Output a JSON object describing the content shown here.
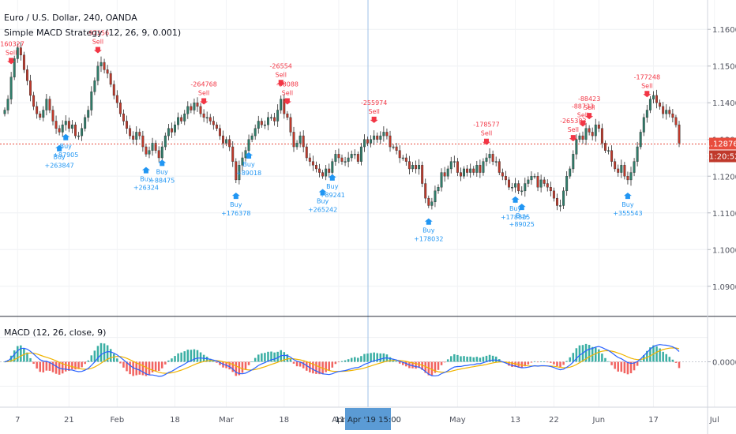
{
  "header": {
    "symbol_title": "Euro / U.S. Dollar, 240, OANDA",
    "strategy_title": "Simple MACD Strategy (12, 26, 9, 0.001)",
    "macd_title": "MACD (12, 26, close, 9)"
  },
  "badges": {
    "last_price": "1.12876",
    "countdown": "01:20:52",
    "crosshair_time": "11 Apr '19   15:00"
  },
  "colors": {
    "up_candle": "#2f7d6a",
    "down_candle": "#c0392b",
    "buy": "#2196f3",
    "sell": "#f23645",
    "macd_line": "#2962ff",
    "signal_line": "#f0b400",
    "hist_pos": "#26a69a",
    "hist_neg": "#ef5350",
    "price_line": "#e84c3d",
    "crosshair_badge": "#5b9bd5"
  },
  "chart_data": [
    {
      "type": "line",
      "chart_kind": "candlestick",
      "ylim": [
        1.082,
        1.168
      ],
      "y_ticks": [
        "1.16000",
        "1.15000",
        "1.14000",
        "1.13000",
        "1.12000",
        "1.11000",
        "1.10000",
        "1.09000"
      ],
      "y_tick_values": [
        1.16,
        1.15,
        1.14,
        1.13,
        1.12,
        1.11,
        1.1,
        1.09
      ],
      "x_ticks": [
        "7",
        "21",
        "Feb",
        "18",
        "Mar",
        "18",
        "Apr",
        "May",
        "13",
        "22",
        "Jun",
        "17",
        "Jul"
      ],
      "x_tick_positions": [
        4,
        20,
        35,
        53,
        69,
        87,
        104,
        141,
        159,
        171,
        185,
        202,
        221
      ],
      "last_price": 1.12876,
      "close_series": [
        1.138,
        1.141,
        1.147,
        1.152,
        1.155,
        1.153,
        1.149,
        1.146,
        1.142,
        1.139,
        1.137,
        1.136,
        1.138,
        1.141,
        1.138,
        1.135,
        1.133,
        1.132,
        1.134,
        1.135,
        1.133,
        1.134,
        1.131,
        1.131,
        1.133,
        1.136,
        1.138,
        1.143,
        1.146,
        1.15,
        1.151,
        1.149,
        1.148,
        1.145,
        1.142,
        1.14,
        1.137,
        1.135,
        1.133,
        1.131,
        1.13,
        1.132,
        1.131,
        1.128,
        1.126,
        1.127,
        1.129,
        1.127,
        1.125,
        1.128,
        1.131,
        1.133,
        1.132,
        1.134,
        1.136,
        1.135,
        1.137,
        1.139,
        1.138,
        1.14,
        1.139,
        1.137,
        1.136,
        1.136,
        1.135,
        1.134,
        1.133,
        1.131,
        1.129,
        1.13,
        1.128,
        1.124,
        1.119,
        1.123,
        1.125,
        1.127,
        1.13,
        1.131,
        1.133,
        1.135,
        1.134,
        1.134,
        1.136,
        1.136,
        1.135,
        1.138,
        1.141,
        1.137,
        1.136,
        1.132,
        1.128,
        1.129,
        1.131,
        1.128,
        1.125,
        1.124,
        1.123,
        1.122,
        1.121,
        1.12,
        1.122,
        1.121,
        1.124,
        1.126,
        1.125,
        1.124,
        1.124,
        1.125,
        1.126,
        1.126,
        1.124,
        1.128,
        1.13,
        1.129,
        1.13,
        1.131,
        1.13,
        1.131,
        1.132,
        1.131,
        1.128,
        1.128,
        1.127,
        1.125,
        1.125,
        1.124,
        1.122,
        1.123,
        1.122,
        1.123,
        1.118,
        1.114,
        1.112,
        1.113,
        1.116,
        1.117,
        1.121,
        1.12,
        1.122,
        1.124,
        1.124,
        1.121,
        1.12,
        1.122,
        1.121,
        1.122,
        1.121,
        1.123,
        1.121,
        1.124,
        1.125,
        1.126,
        1.124,
        1.124,
        1.121,
        1.12,
        1.119,
        1.117,
        1.117,
        1.118,
        1.116,
        1.116,
        1.118,
        1.119,
        1.12,
        1.12,
        1.117,
        1.119,
        1.118,
        1.117,
        1.116,
        1.114,
        1.112,
        1.112,
        1.116,
        1.12,
        1.122,
        1.126,
        1.13,
        1.131,
        1.13,
        1.133,
        1.132,
        1.131,
        1.134,
        1.133,
        1.129,
        1.127,
        1.127,
        1.124,
        1.122,
        1.121,
        1.123,
        1.12,
        1.119,
        1.121,
        1.124,
        1.128,
        1.132,
        1.136,
        1.138,
        1.141,
        1.142,
        1.14,
        1.139,
        1.137,
        1.138,
        1.137,
        1.136,
        1.134,
        1.129
      ],
      "signals": [
        {
          "side": "sell",
          "bar": 2,
          "label": "Sell",
          "value": "-160327"
        },
        {
          "side": "buy",
          "bar": 17,
          "label": "Buy",
          "value": "+263847"
        },
        {
          "side": "buy",
          "bar": 19,
          "label": "Buy",
          "value": "+87905"
        },
        {
          "side": "sell",
          "bar": 29,
          "label": "Sell",
          "value": "-97256"
        },
        {
          "side": "buy",
          "bar": 44,
          "label": "Buy",
          "value": "+26324"
        },
        {
          "side": "buy",
          "bar": 49,
          "label": "Buy",
          "value": "+88475"
        },
        {
          "side": "sell",
          "bar": 62,
          "label": "Sell",
          "value": "-264768"
        },
        {
          "side": "buy",
          "bar": 72,
          "label": "Buy",
          "value": "+176378"
        },
        {
          "side": "buy",
          "bar": 76,
          "label": "Buy",
          "value": "+89018"
        },
        {
          "side": "sell",
          "bar": 86,
          "label": "Sell",
          "value": "-26554"
        },
        {
          "side": "sell",
          "bar": 88,
          "label": "Sell",
          "value": "-88088"
        },
        {
          "side": "buy",
          "bar": 99,
          "label": "Buy",
          "value": "+265242"
        },
        {
          "side": "buy",
          "bar": 102,
          "label": "Buy",
          "value": "+89241"
        },
        {
          "side": "sell",
          "bar": 115,
          "label": "Sell",
          "value": "-255974"
        },
        {
          "side": "buy",
          "bar": 132,
          "label": "Buy",
          "value": "+178032"
        },
        {
          "side": "sell",
          "bar": 150,
          "label": "Sell",
          "value": "-178577"
        },
        {
          "side": "buy",
          "bar": 159,
          "label": "Buy",
          "value": "+178825"
        },
        {
          "side": "buy",
          "bar": 161,
          "label": "Buy",
          "value": "+89025"
        },
        {
          "side": "sell",
          "bar": 177,
          "label": "Sell",
          "value": "-265383"
        },
        {
          "side": "sell",
          "bar": 180,
          "label": "Sell",
          "value": "-88733"
        },
        {
          "side": "sell",
          "bar": 182,
          "label": "Sell",
          "value": "-88423"
        },
        {
          "side": "buy",
          "bar": 194,
          "label": "Buy",
          "value": "+355543"
        },
        {
          "side": "sell",
          "bar": 200,
          "label": "Sell",
          "value": "-177248"
        }
      ]
    },
    {
      "type": "line",
      "title": "MACD (12, 26, close, 9)",
      "ylim": [
        -0.011,
        0.011
      ],
      "y_ticks": [
        "0.00000"
      ],
      "y_tick_values": [
        0
      ],
      "series": [
        {
          "name": "MACD",
          "derived_from": "close_series",
          "fast": 12,
          "slow": 26
        },
        {
          "name": "Signal",
          "period": 9
        },
        {
          "name": "Histogram"
        }
      ]
    }
  ]
}
